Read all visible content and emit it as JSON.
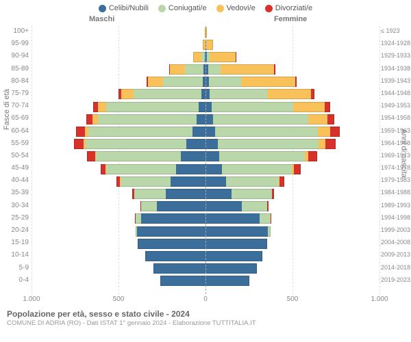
{
  "legend": {
    "items": [
      {
        "label": "Celibi/Nubili",
        "color": "#3b6e9b"
      },
      {
        "label": "Coniugati/e",
        "color": "#b9d7a8"
      },
      {
        "label": "Vedovi/e",
        "color": "#f8c15a"
      },
      {
        "label": "Divorziati/e",
        "color": "#d8302a"
      }
    ]
  },
  "columns": {
    "left": "Maschi",
    "right": "Femmine"
  },
  "axes": {
    "y_left_title": "Fasce di età",
    "y_right_title": "Anni di nascita",
    "x_ticks": [
      {
        "label": "1.000",
        "value": -1000
      },
      {
        "label": "500",
        "value": -500
      },
      {
        "label": "0",
        "value": 0
      },
      {
        "label": "500",
        "value": 500
      },
      {
        "label": "1.000",
        "value": 1000
      }
    ],
    "x_max": 1000
  },
  "colors": {
    "celibi": "#3b6e9b",
    "coniugati": "#b9d7a8",
    "vedovi": "#f8c15a",
    "divorziati": "#d8302a",
    "grid": "#e0e0e0",
    "center_line": "#aaaaaa",
    "background": "#ffffff",
    "text": "#888888"
  },
  "rows": [
    {
      "age": "100+",
      "birth": "≤ 1923",
      "m": {
        "c": 0,
        "co": 0,
        "v": 3,
        "d": 0
      },
      "f": {
        "c": 0,
        "co": 0,
        "v": 8,
        "d": 0
      }
    },
    {
      "age": "95-99",
      "birth": "1924-1928",
      "m": {
        "c": 0,
        "co": 2,
        "v": 15,
        "d": 0
      },
      "f": {
        "c": 2,
        "co": 2,
        "v": 40,
        "d": 0
      }
    },
    {
      "age": "90-94",
      "birth": "1929-1933",
      "m": {
        "c": 5,
        "co": 20,
        "v": 45,
        "d": 0
      },
      "f": {
        "c": 8,
        "co": 15,
        "v": 150,
        "d": 2
      }
    },
    {
      "age": "85-89",
      "birth": "1934-1938",
      "m": {
        "c": 10,
        "co": 110,
        "v": 85,
        "d": 3
      },
      "f": {
        "c": 15,
        "co": 70,
        "v": 310,
        "d": 5
      }
    },
    {
      "age": "80-84",
      "birth": "1939-1943",
      "m": {
        "c": 15,
        "co": 230,
        "v": 85,
        "d": 8
      },
      "f": {
        "c": 20,
        "co": 185,
        "v": 310,
        "d": 10
      }
    },
    {
      "age": "75-79",
      "birth": "1944-1948",
      "m": {
        "c": 25,
        "co": 390,
        "v": 70,
        "d": 15
      },
      "f": {
        "c": 25,
        "co": 330,
        "v": 250,
        "d": 20
      }
    },
    {
      "age": "70-74",
      "birth": "1949-1953",
      "m": {
        "c": 40,
        "co": 530,
        "v": 50,
        "d": 25
      },
      "f": {
        "c": 35,
        "co": 470,
        "v": 180,
        "d": 30
      }
    },
    {
      "age": "65-69",
      "birth": "1954-1958",
      "m": {
        "c": 50,
        "co": 570,
        "v": 30,
        "d": 35
      },
      "f": {
        "c": 45,
        "co": 545,
        "v": 110,
        "d": 40
      }
    },
    {
      "age": "60-64",
      "birth": "1959-1963",
      "m": {
        "c": 75,
        "co": 600,
        "v": 18,
        "d": 50
      },
      "f": {
        "c": 55,
        "co": 590,
        "v": 70,
        "d": 55
      }
    },
    {
      "age": "55-59",
      "birth": "1964-1968",
      "m": {
        "c": 110,
        "co": 580,
        "v": 10,
        "d": 55
      },
      "f": {
        "c": 70,
        "co": 580,
        "v": 40,
        "d": 60
      }
    },
    {
      "age": "50-54",
      "birth": "1969-1973",
      "m": {
        "c": 140,
        "co": 490,
        "v": 5,
        "d": 45
      },
      "f": {
        "c": 80,
        "co": 490,
        "v": 20,
        "d": 50
      }
    },
    {
      "age": "45-49",
      "birth": "1974-1978",
      "m": {
        "c": 170,
        "co": 400,
        "v": 3,
        "d": 30
      },
      "f": {
        "c": 95,
        "co": 400,
        "v": 12,
        "d": 40
      }
    },
    {
      "age": "40-44",
      "birth": "1979-1983",
      "m": {
        "c": 200,
        "co": 290,
        "v": 1,
        "d": 20
      },
      "f": {
        "c": 120,
        "co": 300,
        "v": 6,
        "d": 25
      }
    },
    {
      "age": "35-39",
      "birth": "1984-1988",
      "m": {
        "c": 230,
        "co": 180,
        "v": 0,
        "d": 10
      },
      "f": {
        "c": 150,
        "co": 230,
        "v": 2,
        "d": 12
      }
    },
    {
      "age": "30-34",
      "birth": "1989-1993",
      "m": {
        "c": 280,
        "co": 90,
        "v": 0,
        "d": 4
      },
      "f": {
        "c": 210,
        "co": 145,
        "v": 1,
        "d": 6
      }
    },
    {
      "age": "25-29",
      "birth": "1994-1998",
      "m": {
        "c": 370,
        "co": 30,
        "v": 0,
        "d": 1
      },
      "f": {
        "c": 310,
        "co": 65,
        "v": 0,
        "d": 2
      }
    },
    {
      "age": "20-24",
      "birth": "1999-2003",
      "m": {
        "c": 395,
        "co": 5,
        "v": 0,
        "d": 0
      },
      "f": {
        "c": 360,
        "co": 15,
        "v": 0,
        "d": 0
      }
    },
    {
      "age": "15-19",
      "birth": "2004-2008",
      "m": {
        "c": 390,
        "co": 0,
        "v": 0,
        "d": 0
      },
      "f": {
        "c": 355,
        "co": 0,
        "v": 0,
        "d": 0
      }
    },
    {
      "age": "10-14",
      "birth": "2009-2013",
      "m": {
        "c": 345,
        "co": 0,
        "v": 0,
        "d": 0
      },
      "f": {
        "c": 325,
        "co": 0,
        "v": 0,
        "d": 0
      }
    },
    {
      "age": "5-9",
      "birth": "2014-2018",
      "m": {
        "c": 300,
        "co": 0,
        "v": 0,
        "d": 0
      },
      "f": {
        "c": 295,
        "co": 0,
        "v": 0,
        "d": 0
      }
    },
    {
      "age": "0-4",
      "birth": "2019-2023",
      "m": {
        "c": 260,
        "co": 0,
        "v": 0,
        "d": 0
      },
      "f": {
        "c": 250,
        "co": 0,
        "v": 0,
        "d": 0
      }
    }
  ],
  "footer": {
    "title": "Popolazione per età, sesso e stato civile - 2024",
    "subtitle": "COMUNE DI ADRIA (RO) - Dati ISTAT 1° gennaio 2024 - Elaborazione TUTTITALIA.IT"
  }
}
